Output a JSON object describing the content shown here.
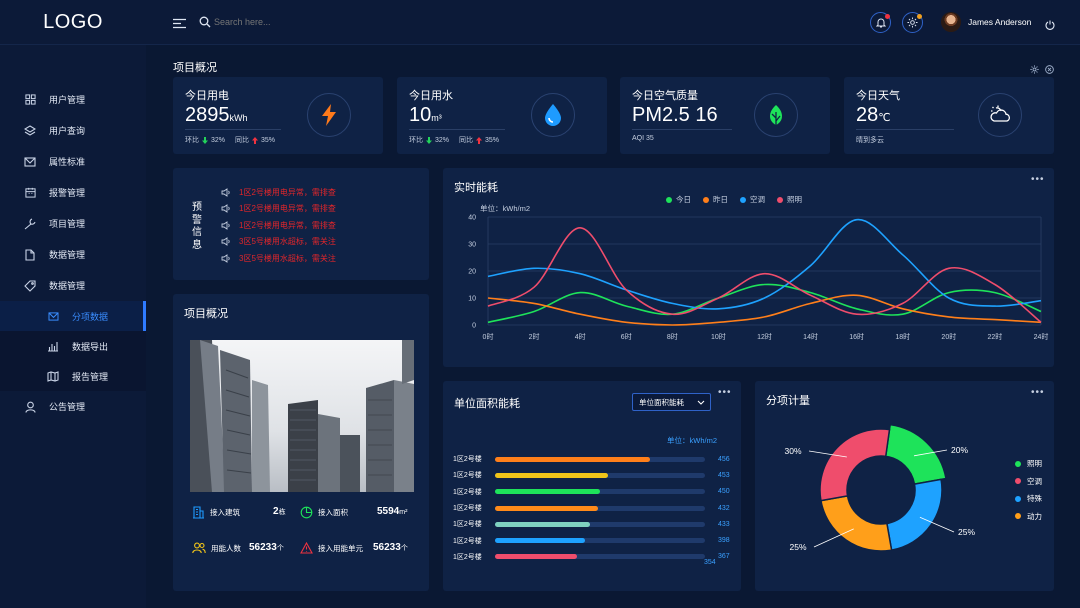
{
  "logo": "LOGO",
  "header": {
    "search_placeholder": "Search here...",
    "user_name": "James Anderson"
  },
  "sidebar": {
    "items": [
      {
        "label": "用户管理",
        "icon": "grid-icon"
      },
      {
        "label": "用户查询",
        "icon": "layers-icon"
      },
      {
        "label": "属性标准",
        "icon": "mail-icon"
      },
      {
        "label": "报警管理",
        "icon": "calendar-icon"
      },
      {
        "label": "项目管理",
        "icon": "wrench-icon"
      },
      {
        "label": "数据管理",
        "icon": "file-icon"
      },
      {
        "label": "数据管理",
        "icon": "tag-icon"
      }
    ],
    "subitems": [
      {
        "label": "分项数据",
        "icon": "mail-icon",
        "active": true
      },
      {
        "label": "数据导出",
        "icon": "bar-chart-icon"
      },
      {
        "label": "报告管理",
        "icon": "map-icon"
      }
    ],
    "last": {
      "label": "公告管理",
      "icon": "user-icon"
    }
  },
  "overview_title": "项目概况",
  "stats": [
    {
      "title": "今日用电",
      "value": "2895",
      "unit": "kWh",
      "sub1_label": "环比",
      "sub1_val": "32%",
      "sub2_label": "同比",
      "sub2_val": "35%"
    },
    {
      "title": "今日用水",
      "value": "10",
      "unit": "m³",
      "sub1_label": "环比",
      "sub1_val": "32%",
      "sub2_label": "同比",
      "sub2_val": "35%"
    },
    {
      "title": "今日空气质量",
      "value": "PM2.5 16",
      "unit": "",
      "sub": "AQI  35"
    },
    {
      "title": "今日天气",
      "value": "28",
      "unit": "℃",
      "sub": "晴到多云"
    }
  ],
  "alerts": {
    "title": "预警信息",
    "items": [
      "1区2号楼用电异常，需排查",
      "1区2号楼用电异常，需排查",
      "1区2号楼用电异常，需排查",
      "3区5号楼用水超标，需关注",
      "3区5号楼用水超标，需关注"
    ]
  },
  "project": {
    "title": "项目概况",
    "rows": [
      {
        "label": "接入建筑",
        "value": "2",
        "unit": "栋"
      },
      {
        "label": "接入面积",
        "value": "5594",
        "unit": "m²"
      },
      {
        "label": "用能人数",
        "value": "56233",
        "unit": "个"
      },
      {
        "label": "接入用能单元",
        "value": "56233",
        "unit": "个"
      }
    ]
  },
  "realtime": {
    "title": "实时能耗",
    "unit_label": "单位：kWh/m2"
  },
  "area_energy": {
    "title": "单位面积能耗",
    "select_value": "单位面积能耗",
    "unit_label": "单位：kWh/m2",
    "bars": [
      {
        "label": "1区2号楼",
        "value": 456,
        "fill": 0.74,
        "color": "#ff7f1a"
      },
      {
        "label": "1区2号楼",
        "value": 453,
        "fill": 0.54,
        "color": "#f0c419"
      },
      {
        "label": "1区2号楼",
        "value": 450,
        "fill": 0.5,
        "color": "#1ee35a"
      },
      {
        "label": "1区2号楼",
        "value": 432,
        "fill": 0.49,
        "color": "#ff8a1a"
      },
      {
        "label": "1区2号楼",
        "value": 433,
        "fill": 0.45,
        "color": "#7fd1c0"
      },
      {
        "label": "1区2号楼",
        "value": 398,
        "fill": 0.43,
        "color": "#1ea2ff"
      },
      {
        "label": "1区2号楼",
        "value": 367,
        "fill": 0.39,
        "color": "#ef4d6c"
      }
    ],
    "extra_value": 354
  },
  "breakdown": {
    "title": "分项计量"
  },
  "chart_data": [
    {
      "type": "line",
      "title": "实时能耗",
      "ylabel": "单位：kWh/m2",
      "x": [
        "0时",
        "2时",
        "4时",
        "6时",
        "8时",
        "10时",
        "12时",
        "14时",
        "16时",
        "18时",
        "20时",
        "22时",
        "24时"
      ],
      "ylim": [
        0,
        40
      ],
      "yticks": [
        0,
        10,
        20,
        30,
        40
      ],
      "grid": true,
      "legend": "top-center",
      "series": [
        {
          "name": "今日",
          "color": "#1ee35a",
          "values": [
            1,
            5,
            12,
            7,
            4,
            10,
            15,
            12,
            6,
            4,
            12,
            12,
            5
          ]
        },
        {
          "name": "昨日",
          "color": "#ff7f1a",
          "values": [
            10,
            8,
            4,
            1,
            0,
            1,
            3,
            8,
            11,
            6,
            3,
            2,
            1
          ]
        },
        {
          "name": "空调",
          "color": "#1ea2ff",
          "values": [
            18,
            21,
            19,
            13,
            8,
            6,
            10,
            22,
            39,
            26,
            10,
            7,
            9
          ]
        },
        {
          "name": "照明",
          "color": "#ef4d6c",
          "values": [
            7,
            14,
            36,
            13,
            4,
            10,
            19,
            11,
            4,
            8,
            21,
            15,
            1
          ]
        }
      ]
    },
    {
      "type": "pie",
      "title": "分项计量",
      "legend": "right",
      "slices": [
        {
          "name": "照明",
          "value": 20,
          "label": "20%",
          "color": "#1ee35a"
        },
        {
          "name": "特殊",
          "value": 25,
          "label": "25%",
          "color": "#1ea2ff"
        },
        {
          "name": "动力",
          "value": 25,
          "label": "25%",
          "color": "#ff9f1a"
        },
        {
          "name": "空调",
          "value": 30,
          "label": "30%",
          "color": "#ef4d6c"
        }
      ]
    }
  ]
}
